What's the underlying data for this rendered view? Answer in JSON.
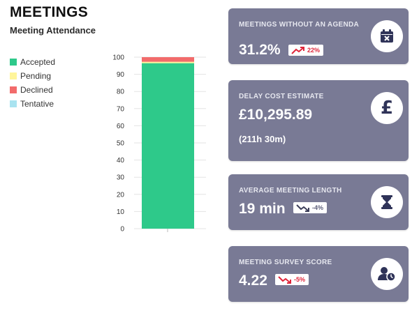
{
  "header": {
    "title": "MEETINGS",
    "subtitle": "Meeting Attendance"
  },
  "legend": [
    {
      "label": "Accepted",
      "color": "#2ec98a"
    },
    {
      "label": "Pending",
      "color": "#fff59a"
    },
    {
      "label": "Declined",
      "color": "#f26b6b"
    },
    {
      "label": "Tentative",
      "color": "#a9e3f0"
    }
  ],
  "chart_data": {
    "type": "bar",
    "stacked": true,
    "categories": [
      ""
    ],
    "series": [
      {
        "name": "Accepted",
        "values": [
          96.5
        ],
        "color": "#2ec98a"
      },
      {
        "name": "Pending",
        "values": [
          0.8
        ],
        "color": "#fff59a"
      },
      {
        "name": "Declined",
        "values": [
          2.7
        ],
        "color": "#f26b6b"
      },
      {
        "name": "Tentative",
        "values": [
          0
        ],
        "color": "#a9e3f0"
      }
    ],
    "ylim": [
      0,
      100
    ],
    "yticks": [
      "0",
      "10",
      "20",
      "30",
      "40",
      "50",
      "60",
      "70",
      "80",
      "90",
      "100"
    ],
    "grid": true,
    "legend_position": "left"
  },
  "cards": [
    {
      "label": "MEETINGS WITHOUT AN AGENDA",
      "value": "31.2%",
      "badge": {
        "text": "22%",
        "trend": "up",
        "color": "#e0263b"
      },
      "icon": "calendar-x-icon"
    },
    {
      "label": "DELAY COST ESTIMATE",
      "value": "£10,295.89",
      "sub": "(211h 30m)",
      "icon": "pound-icon",
      "icon_glyph": "£"
    },
    {
      "label": "AVERAGE MEETING LENGTH",
      "value": "19 min",
      "badge": {
        "text": "-4%",
        "trend": "down",
        "color": "#5d5f7a"
      },
      "icon": "hourglass-icon"
    },
    {
      "label": "MEETING SURVEY SCORE",
      "value": "4.22",
      "badge": {
        "text": "-5%",
        "trend": "down",
        "color": "#e0263b"
      },
      "icon": "user-clock-icon"
    }
  ],
  "colors": {
    "card_bg": "#797a95",
    "icon_fg": "#2f3358",
    "text_dark": "#111111"
  }
}
